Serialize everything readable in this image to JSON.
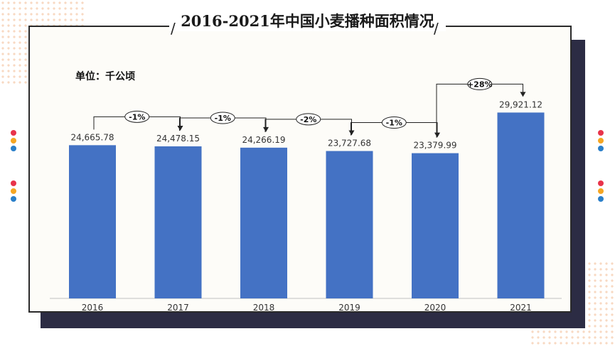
{
  "chart_data": {
    "type": "bar",
    "title": "2016-2021年中国小麦播种面积情况",
    "unit_label": "单位：千公顷",
    "categories": [
      "2016",
      "2017",
      "2018",
      "2019",
      "2020",
      "2021"
    ],
    "values": [
      24665.78,
      24478.15,
      24266.19,
      23727.68,
      23379.99,
      29921.12
    ],
    "value_labels": [
      "24,665.78",
      "24,478.15",
      "24,266.19",
      "23,727.68",
      "23,379.99",
      "29,921.12"
    ],
    "changes": [
      "-1%",
      "-1%",
      "-2%",
      "-1%",
      "+28%"
    ],
    "ylim": [
      0,
      35000
    ],
    "bar_color": "#4472c4",
    "grid": false,
    "legend": "none"
  },
  "decor": {
    "dot_colors": [
      "#e8334a",
      "#f5a623",
      "#2a7fc9"
    ]
  }
}
